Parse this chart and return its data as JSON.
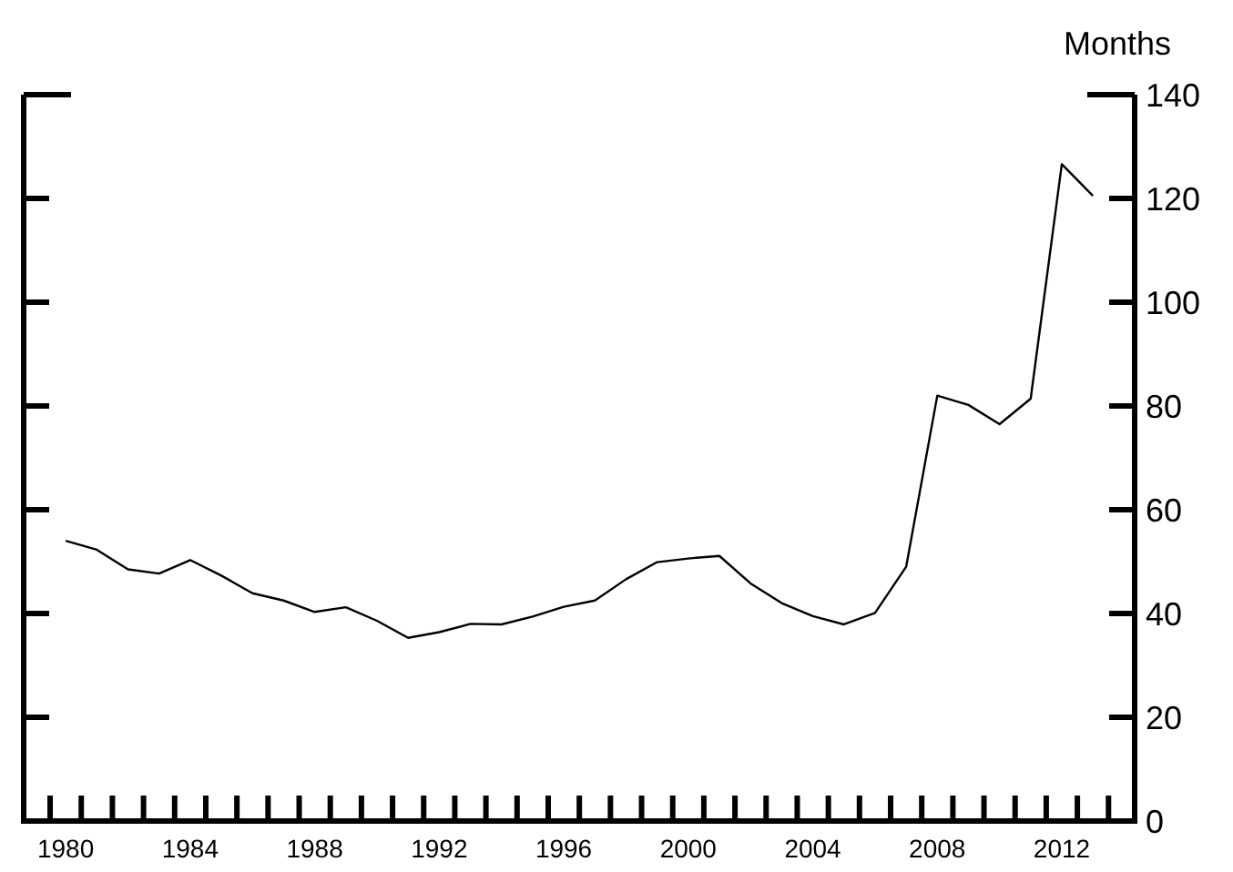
{
  "chart_data": {
    "type": "line",
    "ylabel": "Months",
    "x": [
      1980,
      1981,
      1982,
      1983,
      1984,
      1985,
      1986,
      1987,
      1988,
      1989,
      1990,
      1991,
      1992,
      1993,
      1994,
      1995,
      1996,
      1997,
      1998,
      1999,
      2000,
      2001,
      2002,
      2003,
      2004,
      2005,
      2006,
      2007,
      2008,
      2009,
      2010,
      2011,
      2012,
      2013
    ],
    "series": [
      {
        "color": "#000000",
        "values": [
          54,
          52.3,
          48.5,
          47.7,
          50.3,
          47.3,
          43.9,
          42.5,
          40.3,
          41.2,
          38.6,
          35.3,
          36.4,
          38,
          37.9,
          39.4,
          41.3,
          42.5,
          46.6,
          49.9,
          50.6,
          51.1,
          45.8,
          42,
          39.5,
          37.9,
          40.1,
          49,
          82,
          80.2,
          76.5,
          81.4,
          126.6,
          120.5
        ]
      }
    ],
    "xlim": [
      1978.65,
      2014.34
    ],
    "xticks": [
      1980,
      1984,
      1988,
      1992,
      1996,
      2000,
      2004,
      2008,
      2012
    ],
    "ylim": [
      0,
      140
    ],
    "yticks": [
      0,
      20,
      40,
      60,
      80,
      100,
      120,
      140
    ],
    "grid": false,
    "marker": "none",
    "line_style": "solid"
  }
}
